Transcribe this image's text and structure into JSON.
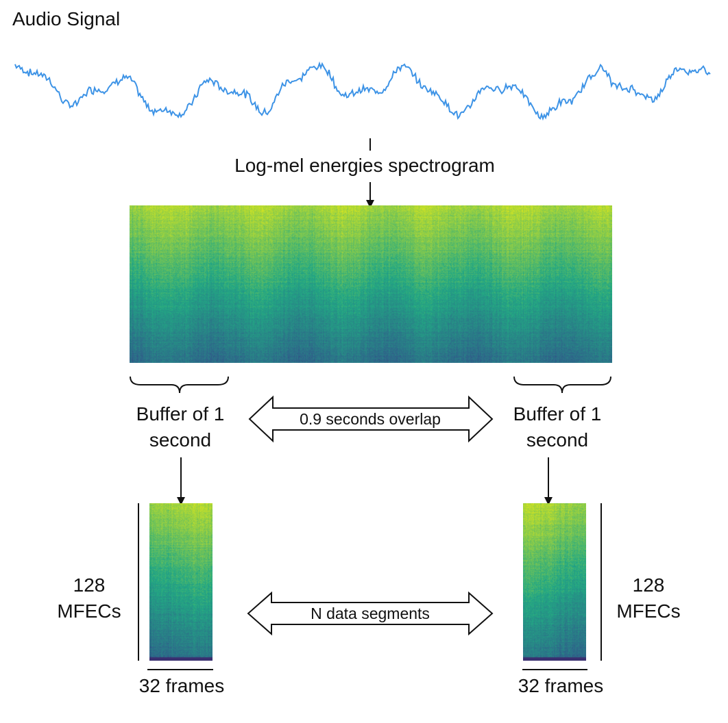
{
  "diagram": {
    "title": "Audio Signal",
    "spectrogram_label": "Log-mel energies spectrogram",
    "buffer_left": [
      "Buffer of 1",
      "second"
    ],
    "buffer_right": [
      "Buffer of 1",
      "second"
    ],
    "overlap_label": "0.9 seconds overlap",
    "segments_label": "N data segments",
    "mfec_left": [
      "128",
      "MFECs"
    ],
    "mfec_right": [
      "128",
      "MFECs"
    ],
    "frames_left": "32 frames",
    "frames_right": "32 frames"
  },
  "colors": {
    "waveform": "#3d93e6",
    "line": "#111111",
    "spec_high": "#d9e61e",
    "spec_mid": "#22a884",
    "spec_low": "#2f5f8a",
    "spec_bottom": "#3b2a6e"
  }
}
